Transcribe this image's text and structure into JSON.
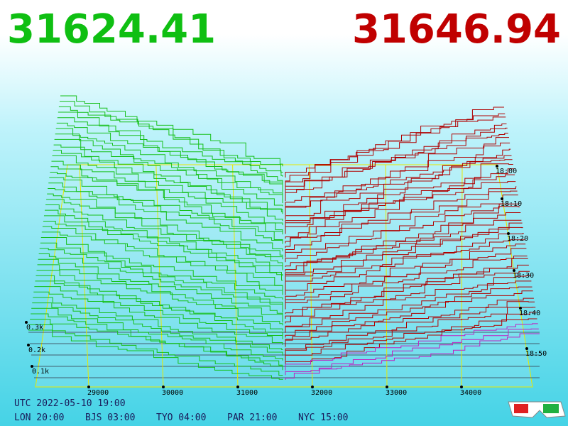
{
  "header": {
    "bid": "31624.41",
    "ask": "31646.94"
  },
  "price_axis": {
    "ticks": [
      "29000",
      "30000",
      "31000",
      "32000",
      "33000",
      "34000"
    ]
  },
  "time_axis": {
    "ticks": [
      "18:00",
      "18:10",
      "18:20",
      "18:30",
      "18:40",
      "18:50"
    ]
  },
  "depth_axis": {
    "ticks": [
      "0.3k",
      "0.2k",
      "0.1k"
    ]
  },
  "footer": {
    "utc": "UTC 2022-05-10 19:00",
    "cities": [
      "LON 20:00",
      "BJS 03:00",
      "TYO 04:00",
      "PAR 21:00",
      "NYC 15:00"
    ]
  }
}
